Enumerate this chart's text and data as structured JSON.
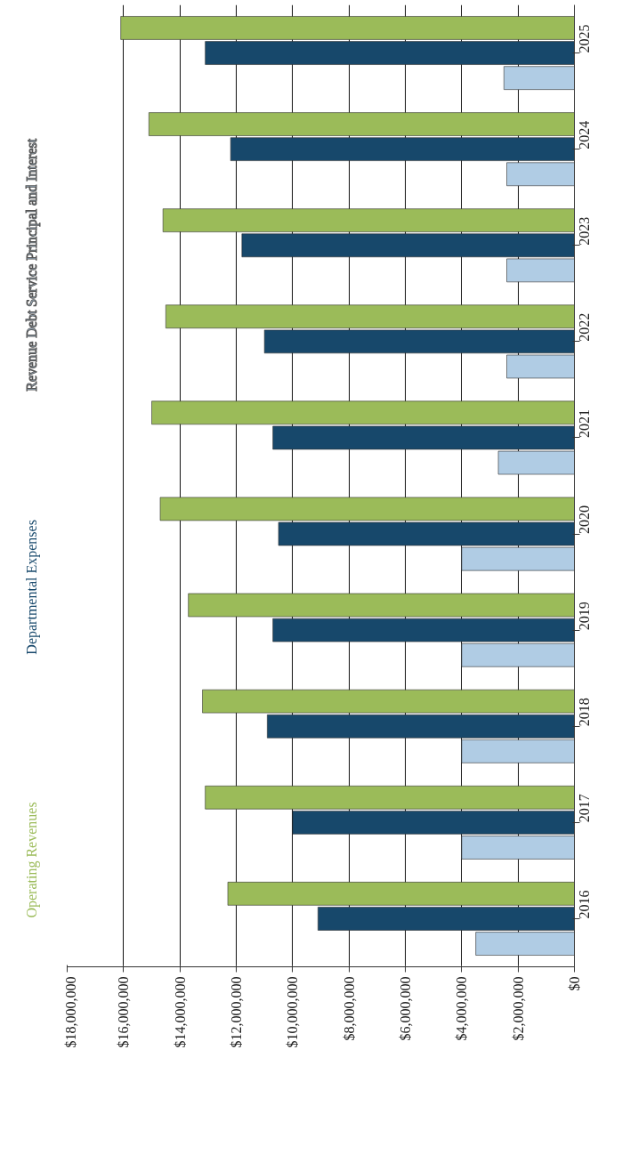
{
  "chart_data": {
    "type": "bar",
    "orientation": "horizontal",
    "categories": [
      "2025",
      "2024",
      "2023",
      "2022",
      "2021",
      "2020",
      "2019",
      "2018",
      "2017",
      "2016"
    ],
    "series": [
      {
        "name": "Operating Revenues",
        "color": "#9bbb59",
        "values": [
          16100000,
          15100000,
          14600000,
          14500000,
          15000000,
          14700000,
          13700000,
          13200000,
          13100000,
          12300000
        ]
      },
      {
        "name": "Departmental Expenses",
        "color": "#17486b",
        "values": [
          13100000,
          12200000,
          11800000,
          11000000,
          10700000,
          10500000,
          10700000,
          10900000,
          10000000,
          9100000
        ]
      },
      {
        "name": "Revenue Debt Service Principal and Interest",
        "color": "#b0cce4",
        "values": [
          2500000,
          2400000,
          2400000,
          2400000,
          2700000,
          4000000,
          4000000,
          4000000,
          4000000,
          3500000
        ]
      }
    ],
    "xlim": [
      18000000,
      0
    ],
    "xticks": [
      {
        "value": 18000000,
        "label": "$18,000,000"
      },
      {
        "value": 16000000,
        "label": "$16,000,000"
      },
      {
        "value": 14000000,
        "label": "$14,000,000"
      },
      {
        "value": 12000000,
        "label": "$12,000,000"
      },
      {
        "value": 10000000,
        "label": "$10,000,000"
      },
      {
        "value": 8000000,
        "label": "$8,000,000"
      },
      {
        "value": 6000000,
        "label": "$6,000,000"
      },
      {
        "value": 4000000,
        "label": "$4,000,000"
      },
      {
        "value": 2000000,
        "label": "$2,000,000"
      },
      {
        "value": 0,
        "label": "$0"
      }
    ],
    "grid": "x",
    "legend": "left"
  }
}
